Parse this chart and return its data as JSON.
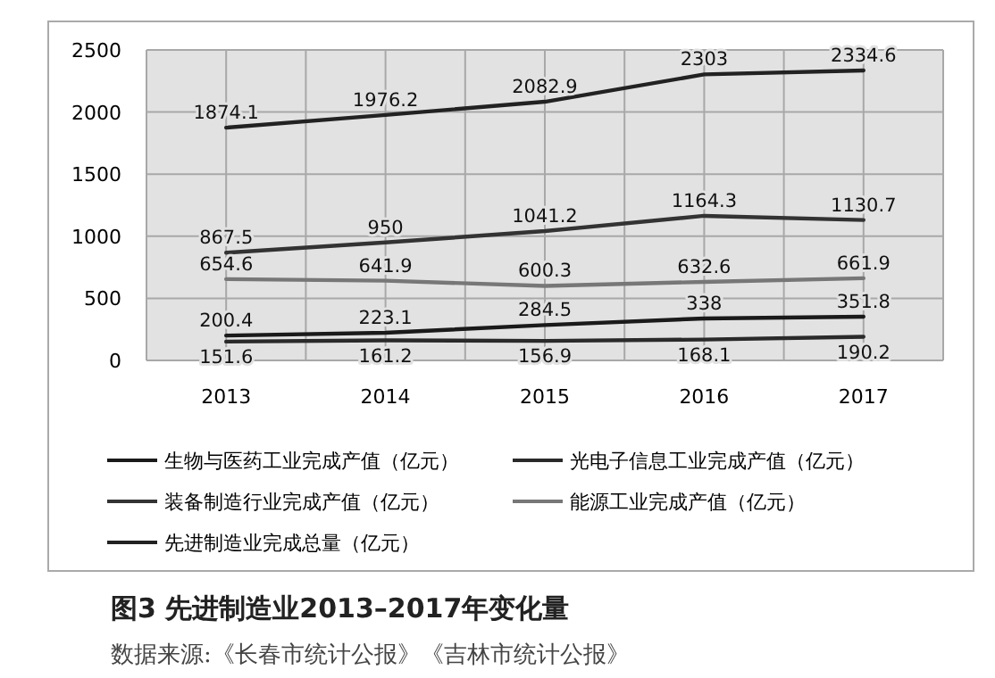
{
  "chart_data": {
    "type": "line",
    "categories": [
      "2013",
      "2014",
      "2015",
      "2016",
      "2017"
    ],
    "series": [
      {
        "name": "生物与医药工业完成产值（亿元）",
        "color": "#1a1a1a",
        "values": [
          200.4,
          223.1,
          284.5,
          338,
          351.8
        ]
      },
      {
        "name": "光电子信息工业完成产值（亿元）",
        "color": "#2a2a2a",
        "values": [
          151.6,
          161.2,
          156.9,
          168.1,
          190.2
        ]
      },
      {
        "name": "装备制造行业完成产值（亿元）",
        "color": "#333333",
        "values": [
          867.5,
          950,
          1041.2,
          1164.3,
          1130.7
        ]
      },
      {
        "name": "能源工业完成产值（亿元）",
        "color": "#777777",
        "values": [
          654.6,
          641.9,
          600.3,
          632.6,
          661.9
        ]
      },
      {
        "name": "先进制造业完成总量（亿元）",
        "color": "#222222",
        "values": [
          1874.1,
          1976.2,
          2082.9,
          2303,
          2334.6
        ]
      }
    ],
    "ylim": [
      0,
      2500
    ],
    "yticks": [
      0,
      500,
      1000,
      1500,
      2000,
      2500
    ],
    "grid": true,
    "legend": "bottom",
    "data_labels": true,
    "marker": "none",
    "line_style": "solid",
    "annotations": [
      "图3  先进制造业2013–2017年变化量",
      "数据来源:《长春市统计公报》《吉林市统计公报》"
    ]
  }
}
